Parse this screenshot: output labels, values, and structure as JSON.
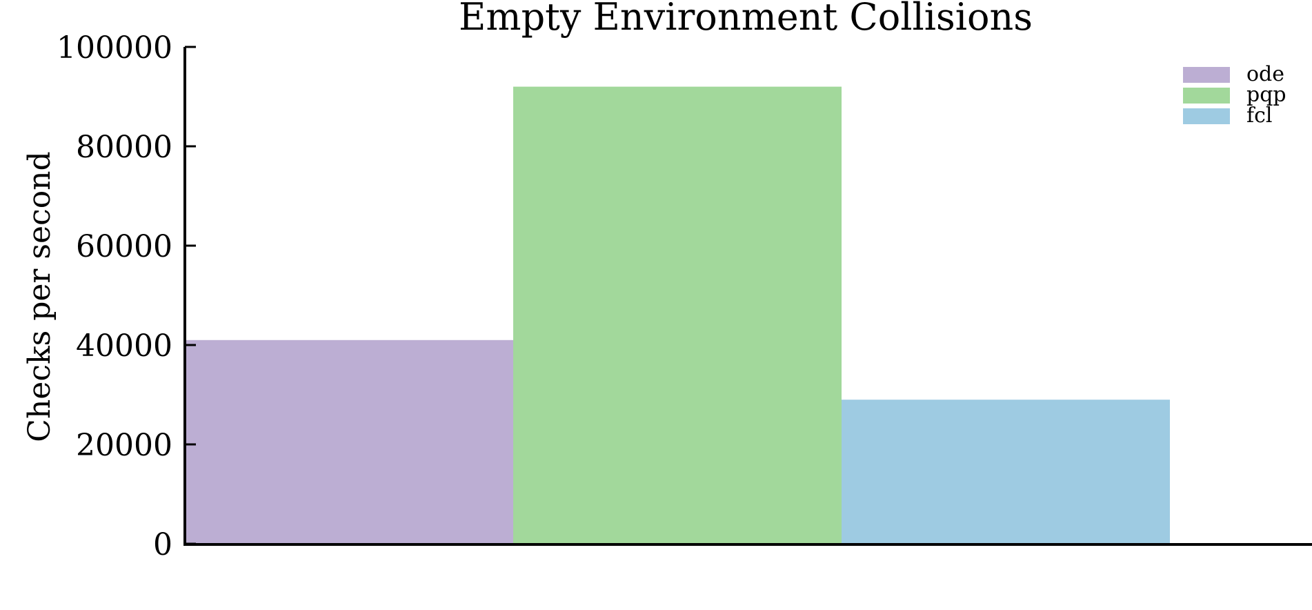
{
  "chart_data": {
    "type": "bar",
    "title": "Empty Environment Collisions",
    "xlabel": "",
    "ylabel": "Checks per second",
    "ylim": [
      0,
      100000
    ],
    "yticks": [
      0,
      20000,
      40000,
      60000,
      80000,
      100000
    ],
    "grid": false,
    "legend_position": "top-right",
    "series": [
      {
        "name": "ode",
        "value": 41000,
        "color": "#bcaed3"
      },
      {
        "name": "pqp",
        "value": 92000,
        "color": "#a2d89b"
      },
      {
        "name": "fcl",
        "value": 29000,
        "color": "#9ecbe2"
      }
    ]
  }
}
